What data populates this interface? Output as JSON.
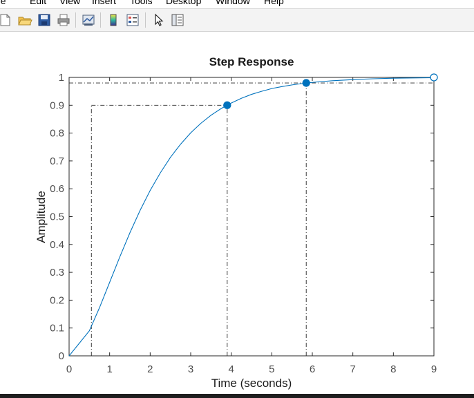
{
  "menu": [
    "File",
    "Edit",
    "View",
    "Insert",
    "Tools",
    "Desktop",
    "Window",
    "Help"
  ],
  "toolbar": {
    "buttons": [
      "new-figure-icon",
      "open-file-icon",
      "save-icon",
      "print-icon",
      "link-plot-icon",
      "colorbar-icon",
      "legend-icon",
      "pointer-icon",
      "property-inspector-icon"
    ]
  },
  "colors": {
    "series": "#0072bd",
    "axes": "#262626",
    "grid_marker": "#262626"
  },
  "chart_data": {
    "type": "line",
    "title": "Step Response",
    "xlabel": "Time (seconds)",
    "ylabel": "Amplitude",
    "xlim": [
      0,
      9
    ],
    "ylim": [
      0,
      1
    ],
    "xticks": [
      "0",
      "1",
      "2",
      "3",
      "4",
      "5",
      "6",
      "7",
      "8",
      "9"
    ],
    "yticks": [
      "0",
      "0.1",
      "0.2",
      "0.3",
      "0.4",
      "0.5",
      "0.6",
      "0.7",
      "0.8",
      "0.9",
      "1"
    ],
    "series": [
      {
        "x": [
          0,
          0.25,
          0.5,
          0.75,
          1,
          1.25,
          1.5,
          1.75,
          2,
          2.25,
          2.5,
          2.75,
          3,
          3.25,
          3.5,
          3.75,
          4,
          4.25,
          4.5,
          4.75,
          5,
          5.25,
          5.5,
          5.75,
          6,
          6.5,
          7,
          7.5,
          8,
          8.5,
          9
        ],
        "y": [
          0,
          0.045,
          0.09,
          0.173,
          0.264,
          0.355,
          0.442,
          0.522,
          0.594,
          0.657,
          0.713,
          0.76,
          0.801,
          0.835,
          0.864,
          0.888,
          0.908,
          0.925,
          0.939,
          0.95,
          0.96,
          0.967,
          0.973,
          0.978,
          0.982,
          0.988,
          0.992,
          0.995,
          0.997,
          0.998,
          0.999
        ]
      }
    ],
    "characteristic_points": [
      {
        "x": 3.9,
        "y": 0.9,
        "style": "filled"
      },
      {
        "x": 5.85,
        "y": 0.98,
        "style": "filled"
      },
      {
        "x": 9,
        "y": 1,
        "style": "open"
      }
    ],
    "reference_lines": [
      {
        "kind": "h",
        "y": 0.9,
        "x_from": 0.55,
        "x_to": 3.9
      },
      {
        "kind": "v",
        "x": 0.55,
        "y_from": 0,
        "y_to": 0.9
      },
      {
        "kind": "v",
        "x": 3.9,
        "y_from": 0,
        "y_to": 0.9
      },
      {
        "kind": "v",
        "x": 5.85,
        "y_from": 0,
        "y_to": 0.98
      },
      {
        "kind": "h",
        "y": 0.98,
        "x_from": 0,
        "x_to": 9
      },
      {
        "kind": "h",
        "y": 1,
        "x_from": 0,
        "x_to": 9
      }
    ],
    "grid": false
  }
}
